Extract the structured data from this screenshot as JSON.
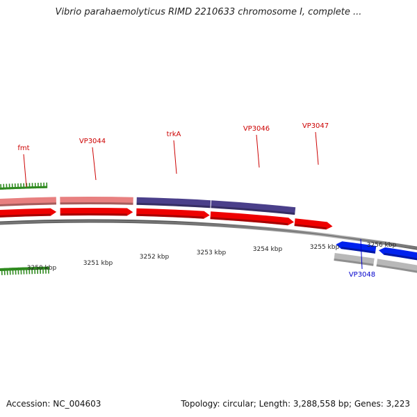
{
  "title": "Vibrio parahaemolyticus RIMD 2210633 chromosome I, complete ...",
  "footer": {
    "accession": "Accession: NC_004603",
    "summary": "Topology: circular; Length: 3,288,558 bp; Genes: 3,223"
  },
  "colors": {
    "cds_forward": "#ee0000",
    "cds_reverse": "#0022ee",
    "gene_pink": "#e88080",
    "gene_purple": "#4a3f8a",
    "gene_gray": "#b8b8b8",
    "label_forward": "#cc0000",
    "label_reverse": "#0000cc",
    "tick": "#2f8a1f",
    "backbone": "#888888"
  },
  "scale": {
    "unit": "kbp",
    "labels": [
      "3250 kbp",
      "3251 kbp",
      "3252 kbp",
      "3253 kbp",
      "3254 kbp",
      "3255 kbp",
      "3256 kbp"
    ]
  },
  "genes": [
    {
      "label": "fmt",
      "strand": "forward"
    },
    {
      "label": "VP3044",
      "strand": "forward"
    },
    {
      "label": "trkA",
      "strand": "forward"
    },
    {
      "label": "VP3046",
      "strand": "forward"
    },
    {
      "label": "VP3047",
      "strand": "forward"
    },
    {
      "label": "VP3048",
      "strand": "reverse"
    }
  ]
}
